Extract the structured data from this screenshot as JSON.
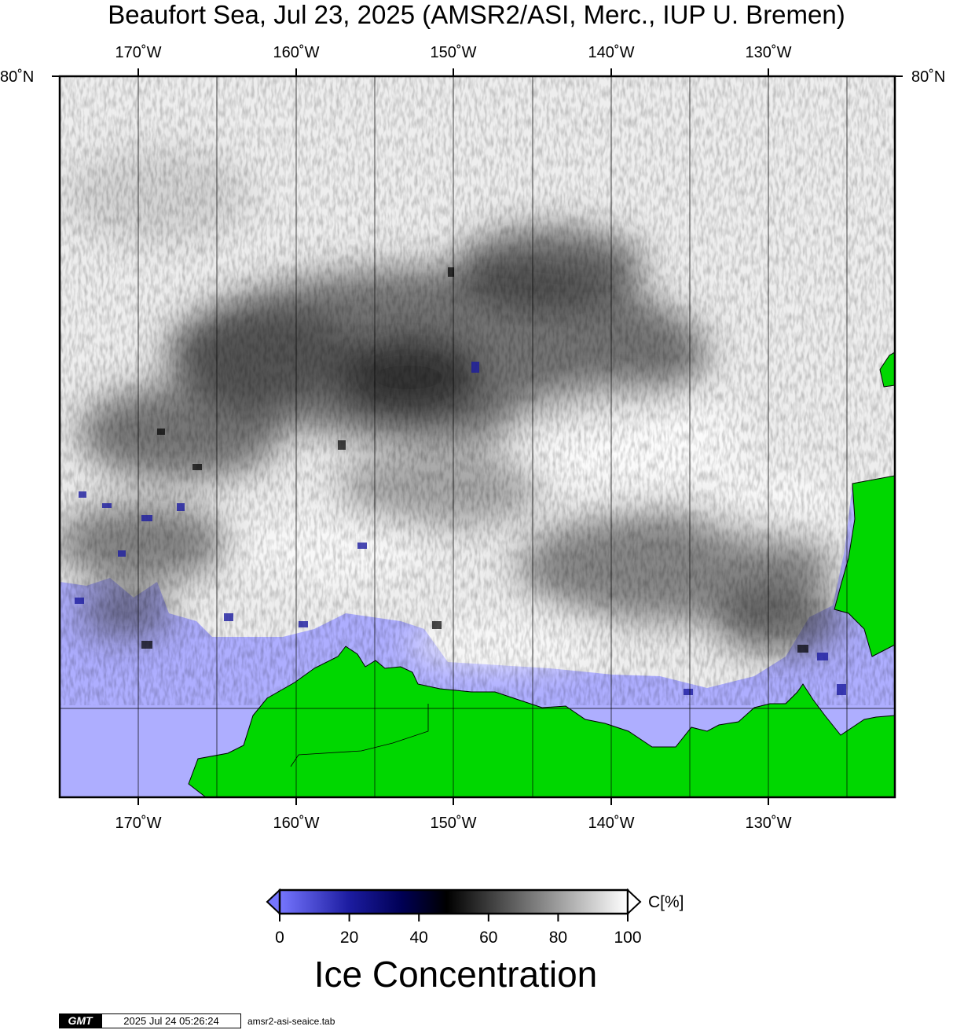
{
  "title": "Beaufort Sea, Jul 23, 2025 (AMSR2/ASI, Merc., IUP U. Bremen)",
  "longitude_labels": [
    "170˚W",
    "160˚W",
    "150˚W",
    "140˚W",
    "130˚W"
  ],
  "longitudes": [
    -170,
    -160,
    -150,
    -140,
    -130
  ],
  "latitude_label": "80˚N",
  "map_extent": {
    "lon_min": -175,
    "lon_max": -122,
    "lat_max": 80
  },
  "colors": {
    "land": "#00d700",
    "open_water": "#aeaeff",
    "frame": "#000000",
    "gridline": "#000000"
  },
  "colorbar": {
    "title": "Ice Concentration",
    "unit": "C[%]",
    "ticks": [
      "0",
      "20",
      "40",
      "60",
      "80",
      "100"
    ],
    "stops": [
      {
        "value": 0,
        "color": "#7676ff"
      },
      {
        "value": 20,
        "color": "#1c1ca0"
      },
      {
        "value": 35,
        "color": "#000055"
      },
      {
        "value": 48,
        "color": "#000000"
      },
      {
        "value": 100,
        "color": "#ffffff"
      }
    ]
  },
  "footer": {
    "logo": "GMT",
    "timestamp": "2025 Jul 24 05:26:24",
    "filename": "amsr2-asi-seaice.tab"
  }
}
